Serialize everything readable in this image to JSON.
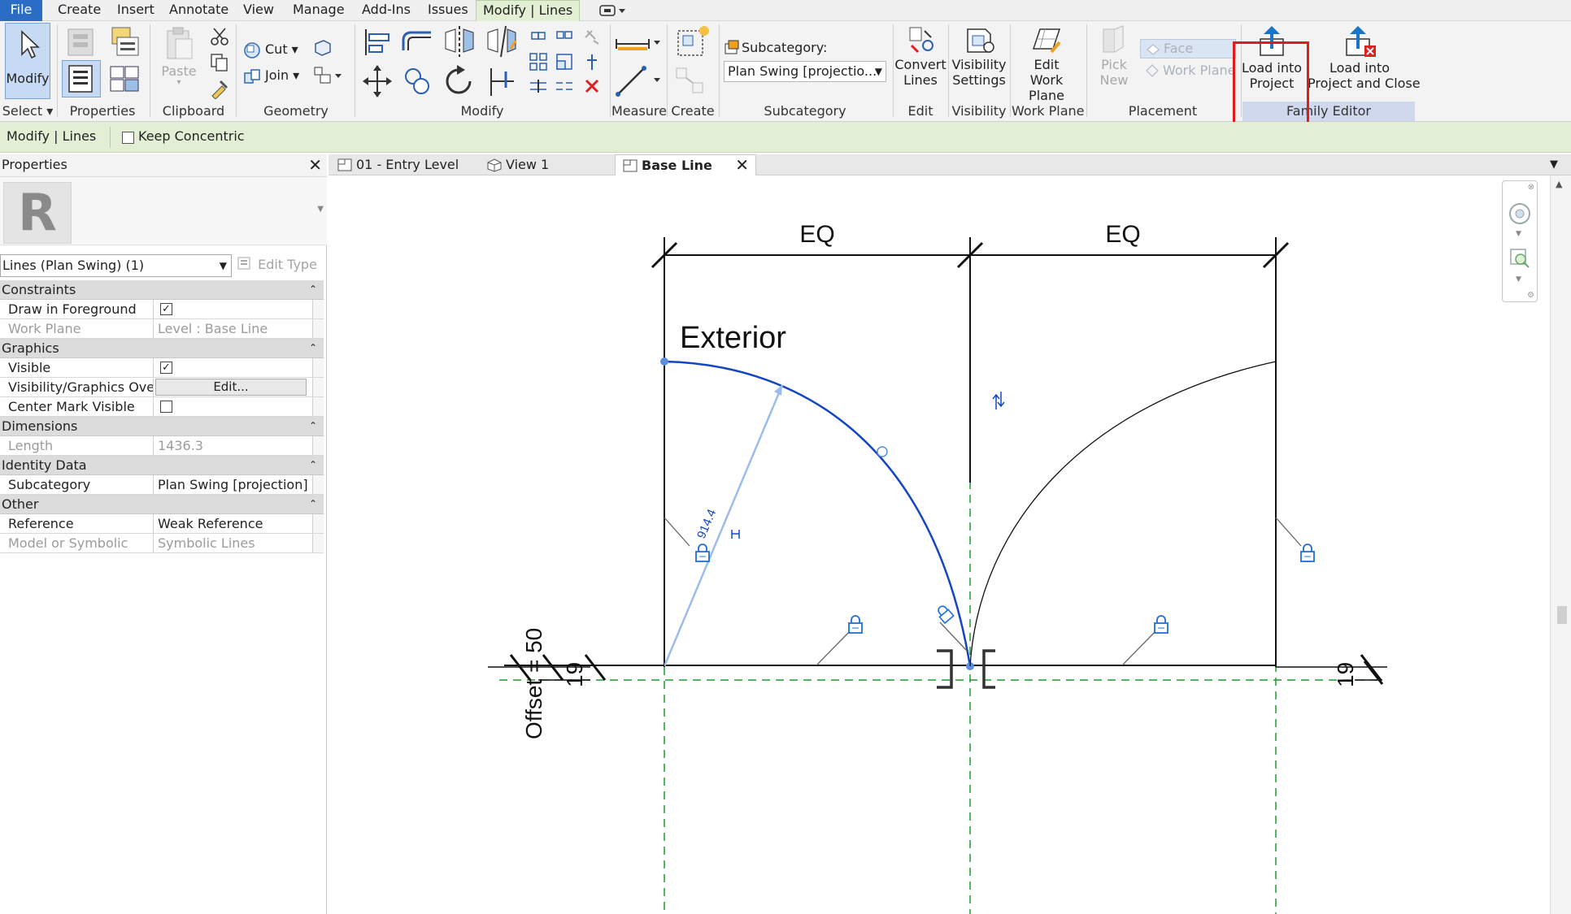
{
  "menu": {
    "tabs": [
      {
        "label": "File",
        "name": "menu-file"
      },
      {
        "label": "Create",
        "name": "menu-create"
      },
      {
        "label": "Insert",
        "name": "menu-insert"
      },
      {
        "label": "Annotate",
        "name": "menu-annotate"
      },
      {
        "label": "View",
        "name": "menu-view"
      },
      {
        "label": "Manage",
        "name": "menu-manage"
      },
      {
        "label": "Add-Ins",
        "name": "menu-addins"
      },
      {
        "label": "Issues",
        "name": "menu-issues"
      },
      {
        "label": "Modify | Lines",
        "name": "menu-modify-lines"
      }
    ]
  },
  "ribbon": {
    "modify": "Modify",
    "select": "Select",
    "properties": "Properties",
    "paste": "Paste",
    "clipboard": "Clipboard",
    "cut": "Cut",
    "join": "Join",
    "geometry": "Geometry",
    "modify_panel": "Modify",
    "measure": "Measure",
    "create": "Create",
    "subcategory_label": "Subcategory:",
    "subcategory_value": "Plan Swing [projectio...",
    "subcategory_panel": "Subcategory",
    "convert_lines_1": "Convert",
    "convert_lines_2": "Lines",
    "edit_panel": "Edit",
    "visibility_settings_1": "Visibility",
    "visibility_settings_2": "Settings",
    "visibility_panel": "Visibility",
    "edit_work_plane_1": "Edit",
    "edit_work_plane_2": "Work Plane",
    "work_plane_panel": "Work Plane",
    "pick_new_1": "Pick",
    "pick_new_2": "New",
    "face": "Face",
    "work_plane": "Work Plane",
    "placement_panel": "Placement",
    "load_into_project_1": "Load into",
    "load_into_project_2": "Project",
    "load_close_1": "Load into",
    "load_close_2": "Project and Close",
    "family_editor_panel": "Family Editor"
  },
  "options_bar": {
    "context": "Modify | Lines",
    "keep_concentric": "Keep Concentric"
  },
  "properties": {
    "title": "Properties",
    "type_selector": "Lines (Plan Swing) (1)",
    "edit_type": "Edit Type",
    "logo_letter": "R",
    "groups": {
      "constraints": "Constraints",
      "graphics": "Graphics",
      "dimensions": "Dimensions",
      "identity": "Identity Data",
      "other": "Other"
    },
    "rows": {
      "draw_fg": "Draw in Foreground",
      "work_plane_k": "Work Plane",
      "work_plane_v": "Level : Base Line",
      "visible": "Visible",
      "vg_over": "Visibility/Graphics Ove...",
      "edit_btn": "Edit...",
      "center_mark": "Center Mark Visible",
      "length_k": "Length",
      "length_v": "1436.3",
      "subcat_k": "Subcategory",
      "subcat_v": "Plan Swing [projection]",
      "ref_k": "Reference",
      "ref_v": "Weak Reference",
      "mos_k": "Model or Symbolic",
      "mos_v": "Symbolic Lines"
    },
    "checked_mark": "✓"
  },
  "view_tabs": [
    {
      "label": "01 - Entry Level"
    },
    {
      "label": "View 1"
    },
    {
      "label": "Base Line"
    }
  ],
  "drawing": {
    "eq_left": "EQ",
    "eq_right": "EQ",
    "exterior": "Exterior",
    "radius": "914.4",
    "offset": "Offset = 50",
    "dim19_left": "19",
    "dim19_right": "19"
  },
  "colors": {
    "accent_blue": "#2b6cc4",
    "highlight_red": "#e31a1a",
    "options_green": "#e3efd5",
    "ref_plane_green": "#1f9b2e",
    "selection_blue": "#1446c4"
  }
}
